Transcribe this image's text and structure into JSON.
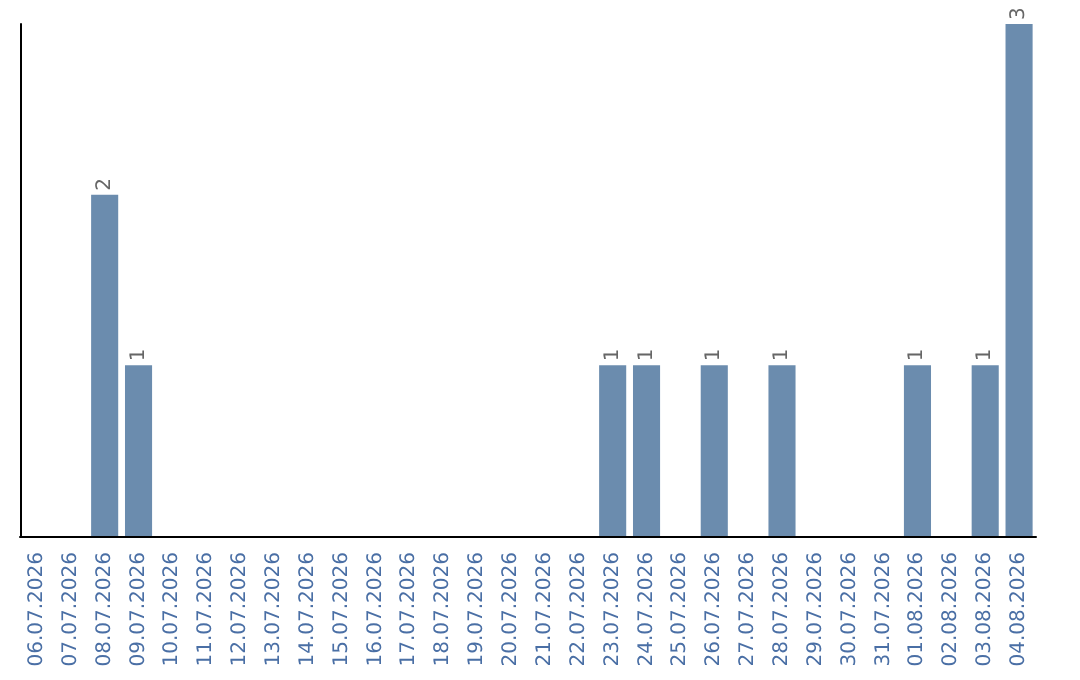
{
  "chart_data": {
    "type": "bar",
    "categories": [
      "06.07.2026",
      "07.07.2026",
      "08.07.2026",
      "09.07.2026",
      "10.07.2026",
      "11.07.2026",
      "12.07.2026",
      "13.07.2026",
      "14.07.2026",
      "15.07.2026",
      "16.07.2026",
      "17.07.2026",
      "18.07.2026",
      "19.07.2026",
      "20.07.2026",
      "21.07.2026",
      "22.07.2026",
      "23.07.2026",
      "24.07.2026",
      "25.07.2026",
      "26.07.2026",
      "27.07.2026",
      "28.07.2026",
      "29.07.2026",
      "30.07.2026",
      "31.07.2026",
      "01.08.2026",
      "02.08.2026",
      "03.08.2026",
      "04.08.2026"
    ],
    "values": [
      0,
      0,
      2,
      1,
      0,
      0,
      0,
      0,
      0,
      0,
      0,
      0,
      0,
      0,
      0,
      0,
      0,
      1,
      1,
      0,
      1,
      0,
      1,
      0,
      0,
      0,
      1,
      0,
      1,
      3
    ],
    "value_labels": [
      null,
      null,
      "2",
      "1",
      null,
      null,
      null,
      null,
      null,
      null,
      null,
      null,
      null,
      null,
      null,
      null,
      null,
      "1",
      "1",
      null,
      "1",
      null,
      "1",
      null,
      null,
      null,
      "1",
      null,
      "1",
      "3"
    ],
    "color": "#6b8cae",
    "grid": false,
    "tick_labels": "x"
  }
}
